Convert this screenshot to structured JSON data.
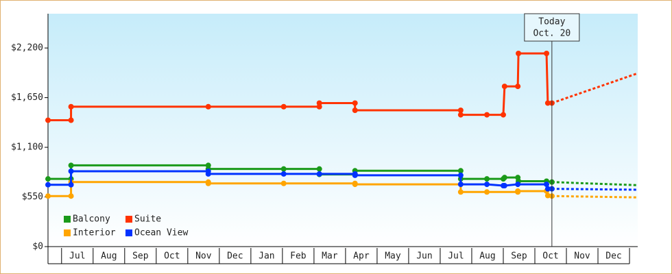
{
  "chart_data": {
    "type": "line",
    "ylim": [
      0,
      2580
    ],
    "yticks": [
      {
        "value": 0,
        "label": "$0"
      },
      {
        "value": 550,
        "label": "$550"
      },
      {
        "value": 1100,
        "label": "$1,100"
      },
      {
        "value": 1650,
        "label": "$1,650"
      },
      {
        "value": 2200,
        "label": "$2,200"
      }
    ],
    "xlim": [
      -0.43,
      18.26
    ],
    "xticks": [
      {
        "value": 0,
        "label": "Jul"
      },
      {
        "value": 1,
        "label": "Aug"
      },
      {
        "value": 2,
        "label": "Sep"
      },
      {
        "value": 3,
        "label": "Oct"
      },
      {
        "value": 4,
        "label": "Nov"
      },
      {
        "value": 5,
        "label": "Dec"
      },
      {
        "value": 6,
        "label": "Jan"
      },
      {
        "value": 7,
        "label": "Feb"
      },
      {
        "value": 8,
        "label": "Mar"
      },
      {
        "value": 9,
        "label": "Apr"
      },
      {
        "value": 10,
        "label": "May"
      },
      {
        "value": 11,
        "label": "Jun"
      },
      {
        "value": 12,
        "label": "Jul"
      },
      {
        "value": 13,
        "label": "Aug"
      },
      {
        "value": 14,
        "label": "Sep"
      },
      {
        "value": 15,
        "label": "Oct"
      },
      {
        "value": 16,
        "label": "Nov"
      },
      {
        "value": 17,
        "label": "Dec"
      }
    ],
    "annotation": {
      "x": 15.54,
      "lines": [
        "Today",
        "Oct. 20"
      ]
    },
    "series": [
      {
        "name": "Balcony",
        "color": "#1a9a1a",
        "x": [
          -0.43,
          0.3,
          0.3,
          4.65,
          4.65,
          7.04,
          8.17,
          8.17,
          9.3,
          9.3,
          12.65,
          12.65,
          13.48,
          14.0,
          14.04,
          14.46,
          14.48,
          15.37,
          15.54
        ],
        "values": [
          750,
          750,
          900,
          900,
          860,
          860,
          860,
          800,
          800,
          840,
          840,
          750,
          750,
          750,
          765,
          765,
          725,
          725,
          715
        ],
        "forecast": {
          "x": [
            15.54,
            18.26
          ],
          "values": [
            715,
            680
          ]
        }
      },
      {
        "name": "Suite",
        "color": "#ff3300",
        "x": [
          -0.43,
          0.3,
          0.3,
          4.65,
          7.04,
          8.17,
          8.17,
          9.3,
          9.3,
          12.65,
          12.65,
          13.48,
          14.0,
          14.04,
          14.46,
          14.48,
          15.37,
          15.41,
          15.54
        ],
        "values": [
          1400,
          1400,
          1550,
          1550,
          1550,
          1550,
          1590,
          1590,
          1510,
          1510,
          1460,
          1460,
          1460,
          1775,
          1775,
          2140,
          2140,
          1590,
          1590
        ],
        "forecast": {
          "x": [
            15.54,
            18.26
          ],
          "values": [
            1590,
            1920
          ]
        }
      },
      {
        "name": "Interior",
        "color": "#ffa500",
        "x": [
          -0.43,
          0.3,
          0.3,
          4.65,
          4.65,
          7.04,
          9.3,
          9.3,
          12.65,
          12.65,
          13.48,
          14.46,
          14.46,
          15.37,
          15.41,
          15.54
        ],
        "values": [
          560,
          560,
          715,
          715,
          700,
          700,
          700,
          690,
          690,
          605,
          605,
          605,
          615,
          615,
          565,
          560
        ],
        "forecast": {
          "x": [
            15.54,
            18.26
          ],
          "values": [
            560,
            545
          ]
        }
      },
      {
        "name": "Ocean View",
        "color": "#0033ff",
        "x": [
          -0.43,
          0.3,
          0.3,
          4.65,
          4.65,
          7.04,
          8.17,
          9.3,
          9.3,
          12.65,
          12.65,
          13.48,
          14.0,
          14.04,
          14.46,
          15.37,
          15.41,
          15.54
        ],
        "values": [
          685,
          685,
          835,
          835,
          805,
          805,
          805,
          805,
          790,
          790,
          690,
          690,
          675,
          675,
          690,
          690,
          640,
          640
        ],
        "forecast": {
          "x": [
            15.54,
            18.26
          ],
          "values": [
            640,
            630
          ]
        }
      }
    ]
  }
}
